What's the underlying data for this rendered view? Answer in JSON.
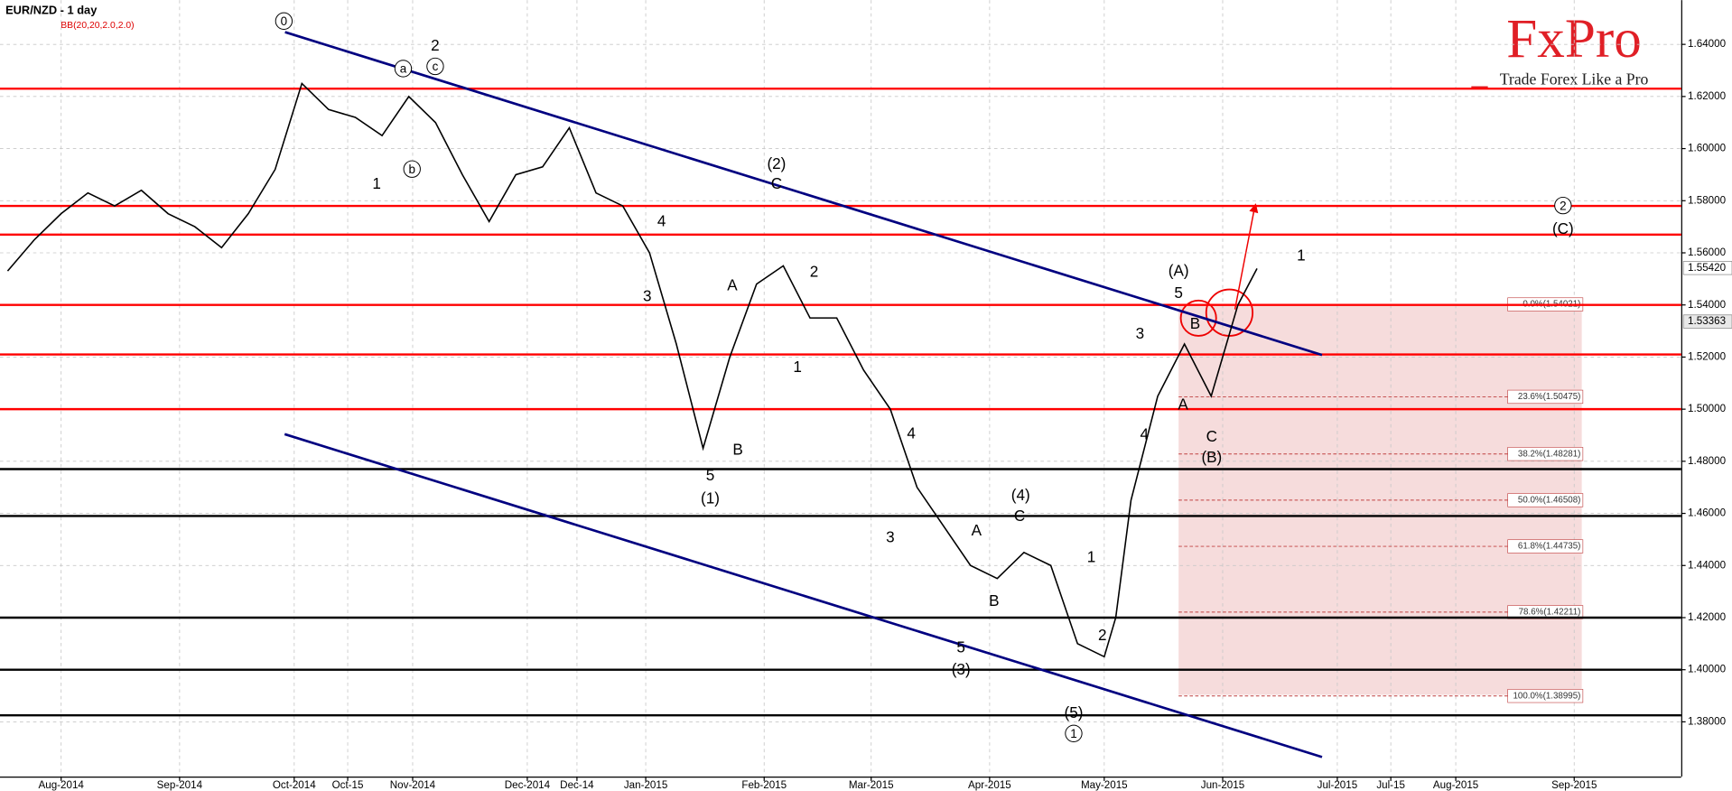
{
  "chart_data": {
    "type": "line",
    "title": "EUR/NZD - 1 day",
    "subtitle": "BB(20,20,2.0,2.0)",
    "color": "#000000",
    "x": [
      -14,
      -7,
      0,
      7,
      14,
      21,
      28,
      35,
      42,
      49,
      56,
      63,
      70,
      77,
      84,
      91,
      98,
      105,
      112,
      119,
      126,
      133,
      140,
      147,
      154,
      161,
      168,
      175,
      182,
      189,
      196,
      203,
      210,
      217,
      224,
      231,
      238,
      245,
      252,
      259,
      266,
      273,
      276,
      280,
      287,
      294,
      301,
      308,
      313
    ],
    "values": [
      1.553,
      1.565,
      1.575,
      1.583,
      1.578,
      1.584,
      1.575,
      1.57,
      1.562,
      1.575,
      1.592,
      1.625,
      1.615,
      1.612,
      1.605,
      1.62,
      1.61,
      1.59,
      1.572,
      1.59,
      1.593,
      1.608,
      1.583,
      1.578,
      1.56,
      1.525,
      1.485,
      1.52,
      1.548,
      1.555,
      1.535,
      1.535,
      1.515,
      1.5,
      1.47,
      1.455,
      1.44,
      1.435,
      1.445,
      1.44,
      1.41,
      1.405,
      1.42,
      1.465,
      1.505,
      1.525,
      1.505,
      1.54,
      1.554
    ],
    "xlim": [
      -16,
      424
    ],
    "xticks": [
      {
        "value": 0,
        "label": "Aug-2014"
      },
      {
        "value": 31,
        "label": "Sep-2014"
      },
      {
        "value": 61,
        "label": "Oct-2014"
      },
      {
        "value": 75,
        "label": "Oct-15"
      },
      {
        "value": 92,
        "label": "Nov-2014"
      },
      {
        "value": 122,
        "label": "Dec-2014"
      },
      {
        "value": 135,
        "label": "Dec-14"
      },
      {
        "value": 153,
        "label": "Jan-2015"
      },
      {
        "value": 184,
        "label": "Feb-2015"
      },
      {
        "value": 212,
        "label": "Mar-2015"
      },
      {
        "value": 243,
        "label": "Apr-2015"
      },
      {
        "value": 273,
        "label": "May-2015"
      },
      {
        "value": 304,
        "label": "Jun-2015"
      },
      {
        "value": 334,
        "label": "Jul-2015"
      },
      {
        "value": 348,
        "label": "Jul-15"
      },
      {
        "value": 365,
        "label": "Aug-2015"
      },
      {
        "value": 396,
        "label": "Sep-2015"
      }
    ],
    "ylim": [
      1.359,
      1.657
    ],
    "yticks": [
      {
        "value": 1.38,
        "label": "1.38000"
      },
      {
        "value": 1.4,
        "label": "1.40000"
      },
      {
        "value": 1.42,
        "label": "1.42000"
      },
      {
        "value": 1.44,
        "label": "1.44000"
      },
      {
        "value": 1.46,
        "label": "1.46000"
      },
      {
        "value": 1.48,
        "label": "1.48000"
      },
      {
        "value": 1.5,
        "label": "1.50000"
      },
      {
        "value": 1.52,
        "label": "1.52000"
      },
      {
        "value": 1.54,
        "label": "1.54000"
      },
      {
        "value": 1.56,
        "label": "1.56000"
      },
      {
        "value": 1.58,
        "label": "1.58000"
      },
      {
        "value": 1.6,
        "label": "1.60000"
      },
      {
        "value": 1.62,
        "label": "1.62000"
      },
      {
        "value": 1.64,
        "label": "1.64000"
      }
    ],
    "grid": true,
    "price_labels": [
      {
        "value": 1.5542,
        "label": "1.55420"
      },
      {
        "value": 1.53363,
        "label": "1.53363"
      }
    ],
    "levels_red": [
      1.623,
      1.578,
      1.567,
      1.54,
      1.521,
      1.5
    ],
    "levels_black": [
      1.477,
      1.459,
      1.42,
      1.4,
      1.3825
    ],
    "level_red_color": "#ff0000",
    "level_black_color": "#000000",
    "fib_levels": [
      {
        "value": 1.54021,
        "label": "0.0%(1.54021)"
      },
      {
        "value": 1.50475,
        "label": "23.6%(1.50475)"
      },
      {
        "value": 1.48281,
        "label": "38.2%(1.48281)"
      },
      {
        "value": 1.46508,
        "label": "50.0%(1.46508)"
      },
      {
        "value": 1.44735,
        "label": "61.8%(1.44735)"
      },
      {
        "value": 1.42211,
        "label": "78.6%(1.42211)"
      },
      {
        "value": 1.38995,
        "label": "100.0%(1.38995)"
      }
    ],
    "trendlines": [
      {
        "color": "#000080",
        "x": [
          58.6,
          330
        ],
        "y": [
          1.6447,
          1.5208
        ]
      },
      {
        "color": "#000080",
        "x": [
          58.5,
          330
        ],
        "y": [
          1.4904,
          1.3665
        ]
      }
    ],
    "annotations": [
      "0",
      "a",
      "2",
      "c",
      "b",
      "1",
      "(2)",
      "C",
      "4",
      "2",
      "3",
      "A",
      "1",
      "B",
      "5",
      "(1)",
      "4",
      "3",
      "A",
      "(4)",
      "C",
      "B",
      "5",
      "(3)",
      "1",
      "2",
      "(5)",
      "1",
      "(A)",
      "5",
      "3",
      "B",
      "A",
      "4",
      "C",
      "(B)",
      "1",
      "2",
      "(C)"
    ]
  },
  "logo": {
    "brand": "FxPro",
    "tagline": "Trade Forex Like a Pro"
  }
}
